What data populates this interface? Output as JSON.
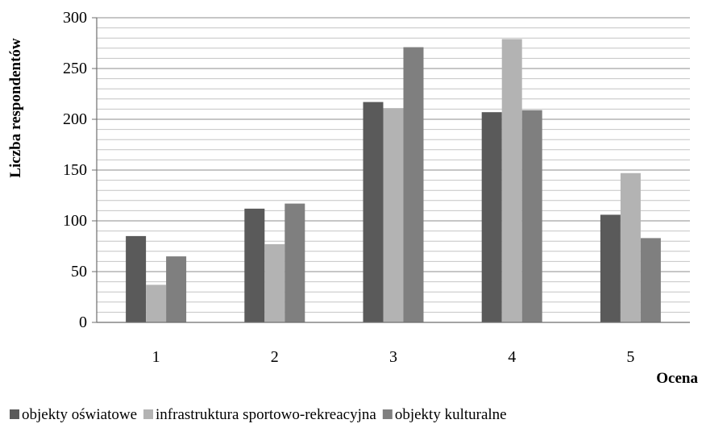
{
  "chart_data": {
    "type": "bar",
    "title": "",
    "xlabel": "Ocena",
    "ylabel": "Liczba respondentów",
    "categories": [
      "1",
      "2",
      "3",
      "4",
      "5"
    ],
    "ylim": [
      0,
      300
    ],
    "y_ticks": [
      "0",
      "50",
      "100",
      "150",
      "200",
      "250",
      "300"
    ],
    "grid": "on",
    "legend_position": "bottom",
    "series": [
      {
        "name": "objekty oświatowe",
        "color": "#5a5a5a",
        "values": [
          85,
          112,
          217,
          207,
          106
        ]
      },
      {
        "name": "infrastruktura sportowo-rekreacyjna",
        "color": "#b3b3b3",
        "values": [
          37,
          77,
          211,
          279,
          147
        ]
      },
      {
        "name": "objekty kulturalne",
        "color": "#7f7f7f",
        "values": [
          65,
          117,
          271,
          209,
          83
        ]
      }
    ]
  }
}
